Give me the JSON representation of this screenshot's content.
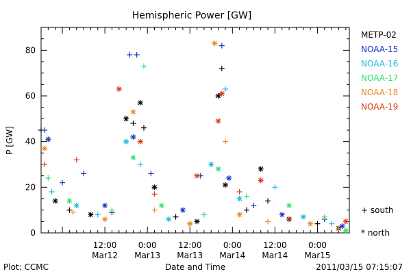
{
  "chart_data": {
    "type": "scatter",
    "title": "Hemispheric Power [GW]",
    "ylabel": "P [GW]",
    "xlabel": "Date and Time",
    "ylim": [
      0,
      90
    ],
    "xlim": [
      "2011-03-11 18:00",
      "2011-03-15 09:00"
    ],
    "yticks": [
      "0",
      "20",
      "40",
      "60",
      "80"
    ],
    "xticks": [
      {
        "time": "2011-03-12 12:00",
        "line1": "12:00",
        "line2": "Mar12"
      },
      {
        "time": "2011-03-13 00:00",
        "line1": "0:00",
        "line2": "Mar13"
      },
      {
        "time": "2011-03-13 12:00",
        "line1": "12:00",
        "line2": "Mar13"
      },
      {
        "time": "2011-03-14 00:00",
        "line1": "0:00",
        "line2": "Mar14"
      },
      {
        "time": "2011-03-14 12:00",
        "line1": "12:00",
        "line2": "Mar14"
      },
      {
        "time": "2011-03-15 00:00",
        "line1": "0:00",
        "line2": "Mar15"
      }
    ],
    "markers": {
      "south": "+ south",
      "north": "* north"
    },
    "series": [
      {
        "name": "METP-02",
        "color": "#000000",
        "points": [
          [
            "2011-03-11 18:00",
            45,
            "+"
          ],
          [
            "2011-03-11 22:00",
            14,
            "*"
          ],
          [
            "2011-03-12 02:00",
            10,
            "+"
          ],
          [
            "2011-03-12 08:00",
            8,
            "*"
          ],
          [
            "2011-03-12 14:00",
            9,
            "+"
          ],
          [
            "2011-03-12 18:00",
            50,
            "*"
          ],
          [
            "2011-03-12 20:00",
            48,
            "+"
          ],
          [
            "2011-03-12 22:00",
            57,
            "*"
          ],
          [
            "2011-03-12 23:00",
            46,
            "+"
          ],
          [
            "2011-03-13 02:00",
            20,
            "*"
          ],
          [
            "2011-03-13 08:00",
            7,
            "+"
          ],
          [
            "2011-03-13 14:00",
            5,
            "*"
          ],
          [
            "2011-03-13 20:00",
            60,
            "*"
          ],
          [
            "2011-03-13 21:00",
            72,
            "+"
          ],
          [
            "2011-03-13 22:00",
            21,
            "*"
          ],
          [
            "2011-03-14 04:00",
            10,
            "+"
          ],
          [
            "2011-03-14 08:00",
            28,
            "*"
          ],
          [
            "2011-03-14 10:00",
            14,
            "+"
          ],
          [
            "2011-03-14 16:00",
            6,
            "*"
          ],
          [
            "2011-03-15 00:00",
            4,
            "+"
          ],
          [
            "2011-03-15 06:00",
            2,
            "*"
          ]
        ]
      },
      {
        "name": "NOAA-15",
        "color": "#1a35c8",
        "points": [
          [
            "2011-03-11 19:00",
            45,
            "+"
          ],
          [
            "2011-03-11 20:00",
            41,
            "*"
          ],
          [
            "2011-03-12 00:00",
            22,
            "+"
          ],
          [
            "2011-03-12 06:00",
            26,
            "+"
          ],
          [
            "2011-03-12 12:00",
            12,
            "*"
          ],
          [
            "2011-03-12 19:00",
            78,
            "+"
          ],
          [
            "2011-03-12 21:00",
            78,
            "+"
          ],
          [
            "2011-03-12 20:00",
            42,
            "*"
          ],
          [
            "2011-03-13 01:00",
            26,
            "+"
          ],
          [
            "2011-03-13 10:00",
            10,
            "*"
          ],
          [
            "2011-03-13 15:00",
            25,
            "+"
          ],
          [
            "2011-03-13 21:00",
            82,
            "+"
          ],
          [
            "2011-03-13 23:00",
            24,
            "*"
          ],
          [
            "2011-03-14 06:00",
            12,
            "+"
          ],
          [
            "2011-03-14 14:00",
            8,
            "*"
          ],
          [
            "2011-03-15 02:00",
            6,
            "+"
          ],
          [
            "2011-03-15 07:00",
            3,
            "*"
          ]
        ]
      },
      {
        "name": "NOAA-16",
        "color": "#16bde0",
        "points": [
          [
            "2011-03-11 21:00",
            18,
            "+"
          ],
          [
            "2011-03-12 04:00",
            12,
            "*"
          ],
          [
            "2011-03-12 10:00",
            8,
            "+"
          ],
          [
            "2011-03-12 18:00",
            40,
            "*"
          ],
          [
            "2011-03-12 22:00",
            30,
            "+"
          ],
          [
            "2011-03-13 06:00",
            6,
            "*"
          ],
          [
            "2011-03-13 12:00",
            4,
            "+"
          ],
          [
            "2011-03-13 18:00",
            30,
            "*"
          ],
          [
            "2011-03-13 22:00",
            63,
            "+"
          ],
          [
            "2011-03-14 02:00",
            15,
            "*"
          ],
          [
            "2011-03-14 12:00",
            20,
            "+"
          ],
          [
            "2011-03-14 20:00",
            7,
            "*"
          ],
          [
            "2011-03-15 04:00",
            4,
            "+"
          ]
        ]
      },
      {
        "name": "NOAA-17",
        "color": "#30e070",
        "points": [
          [
            "2011-03-11 20:00",
            24,
            "+"
          ],
          [
            "2011-03-12 02:00",
            14,
            "*"
          ],
          [
            "2011-03-12 14:00",
            10,
            "+"
          ],
          [
            "2011-03-12 20:00",
            33,
            "*"
          ],
          [
            "2011-03-12 23:00",
            73,
            "+"
          ],
          [
            "2011-03-13 04:00",
            12,
            "*"
          ],
          [
            "2011-03-13 16:00",
            8,
            "+"
          ],
          [
            "2011-03-13 20:00",
            28,
            "*"
          ],
          [
            "2011-03-14 04:00",
            16,
            "+"
          ],
          [
            "2011-03-14 16:00",
            12,
            "*"
          ],
          [
            "2011-03-15 02:00",
            7,
            "+"
          ],
          [
            "2011-03-15 08:00",
            1,
            "*"
          ]
        ]
      },
      {
        "name": "NOAA-18",
        "color": "#f08a1c",
        "points": [
          [
            "2011-03-11 19:00",
            37,
            "*"
          ],
          [
            "2011-03-12 03:00",
            9,
            "+"
          ],
          [
            "2011-03-12 12:00",
            6,
            "*"
          ],
          [
            "2011-03-12 20:00",
            53,
            "*"
          ],
          [
            "2011-03-13 02:00",
            10,
            "+"
          ],
          [
            "2011-03-13 12:00",
            4,
            "*"
          ],
          [
            "2011-03-13 19:00",
            83,
            "*"
          ],
          [
            "2011-03-13 22:00",
            40,
            "+"
          ],
          [
            "2011-03-14 02:00",
            8,
            "*"
          ],
          [
            "2011-03-14 10:00",
            5,
            "+"
          ],
          [
            "2011-03-14 22:00",
            4,
            "*"
          ],
          [
            "2011-03-15 06:00",
            2,
            "+"
          ]
        ]
      },
      {
        "name": "NOAA-19",
        "color": "#e03818",
        "points": [
          [
            "2011-03-11 19:00",
            30,
            "+"
          ],
          [
            "2011-03-12 04:00",
            32,
            "+"
          ],
          [
            "2011-03-12 16:00",
            63,
            "*"
          ],
          [
            "2011-03-12 22:00",
            40,
            "*"
          ],
          [
            "2011-03-13 02:00",
            17,
            "+"
          ],
          [
            "2011-03-13 14:00",
            25,
            "*"
          ],
          [
            "2011-03-13 20:00",
            49,
            "*"
          ],
          [
            "2011-03-13 21:00",
            61,
            "*"
          ],
          [
            "2011-03-14 02:00",
            18,
            "+"
          ],
          [
            "2011-03-14 08:00",
            23,
            "*"
          ],
          [
            "2011-03-14 16:00",
            6,
            "+"
          ],
          [
            "2011-03-15 08:00",
            5,
            "*"
          ]
        ]
      }
    ]
  },
  "footer": {
    "left": "Plot: CCMC",
    "right": "2011/03/15 07:15:07"
  }
}
